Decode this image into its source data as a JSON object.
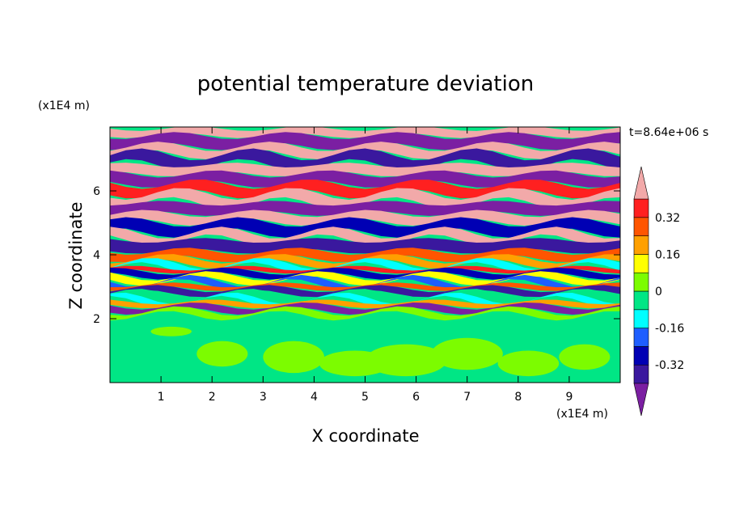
{
  "chart_data": {
    "type": "heatmap",
    "title": "potential temperature deviation",
    "xlabel": "X coordinate",
    "ylabel": "Z coordinate",
    "x_unit": "(x1E4 m)",
    "y_unit": "(x1E4 m)",
    "time_label": "t=8.64e+06 s",
    "xlim": [
      0,
      10
    ],
    "ylim": [
      0,
      8
    ],
    "x_ticks": [
      "1",
      "2",
      "3",
      "4",
      "5",
      "6",
      "7",
      "8",
      "9"
    ],
    "y_ticks": [
      "2",
      "4",
      "6"
    ],
    "colorbar": {
      "levels": [
        -0.4,
        -0.32,
        -0.24,
        -0.16,
        -0.08,
        0,
        0.08,
        0.16,
        0.24,
        0.32,
        0.4
      ],
      "labels": [
        "0.32",
        "0.16",
        "0",
        "-0.16",
        "-0.32"
      ],
      "label_values": [
        0.32,
        0.16,
        0,
        -0.16,
        -0.32
      ],
      "colors": [
        "#7b1fa2",
        "#3a189e",
        "#0000b4",
        "#1e5eff",
        "#00ffff",
        "#00e685",
        "#7cfc00",
        "#ffff00",
        "#ffa000",
        "#ff5500",
        "#ff2020",
        "#f2a9a9"
      ],
      "extend": "both"
    }
  }
}
